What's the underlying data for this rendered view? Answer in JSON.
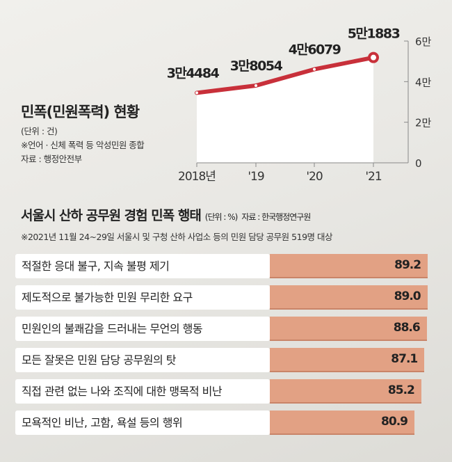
{
  "chart_data": [
    {
      "type": "line",
      "title": "민폭(민원폭력) 현황",
      "unit_note": "(단위 : 건)",
      "note": "※언어 · 신체 폭력 등 악성민원 종합",
      "source": "자료 : 행정안전부",
      "categories": [
        "2018년",
        "'19",
        "'20",
        "'21"
      ],
      "values": [
        34484,
        38054,
        46079,
        51883
      ],
      "data_labels": [
        "3만4484",
        "3만8054",
        "4만6079",
        "5만1883"
      ],
      "yticks": [
        0,
        20000,
        40000,
        60000
      ],
      "ytick_labels": [
        "0",
        "2만",
        "4만",
        "6만"
      ],
      "ylim": [
        0,
        60000
      ],
      "color": "#c8303a"
    },
    {
      "type": "bar",
      "title": "서울시 산하 공무원 경험 민폭 행태",
      "unit_note": "(단위 : %)",
      "source": "자료 : 한국행정연구원",
      "note": "※2021년 11월 24~29일 서울시 및 구청 산하 사업소 등의 민원 담당 공무원 519명 대상",
      "categories": [
        "적절한 응대 불구, 지속 불평 제기",
        "제도적으로 불가능한 민원 무리한 요구",
        "민원인의 불쾌감을 드러내는 무언의 행동",
        "모든 잘못은 민원 담당 공무원의 탓",
        "직접 관련 없는 나와 조직에 대한 맹목적 비난",
        "모욕적인 비난, 고함, 욕설 등의 행위"
      ],
      "values": [
        89.2,
        89.0,
        88.6,
        87.1,
        85.2,
        80.9
      ],
      "value_labels": [
        "89.2",
        "89.0",
        "88.6",
        "87.1",
        "85.2",
        "80.9"
      ],
      "color": "#e2a184"
    }
  ]
}
